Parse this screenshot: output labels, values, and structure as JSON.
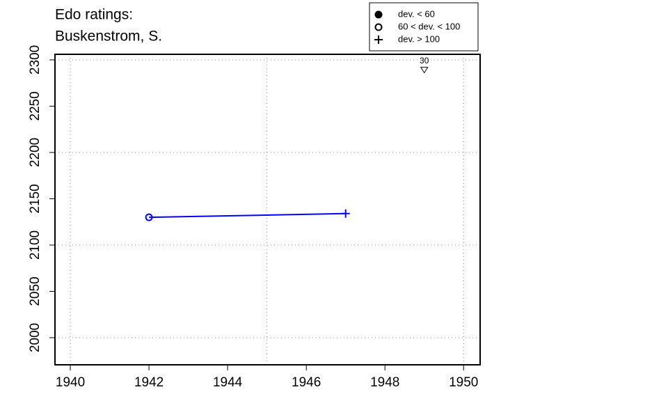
{
  "chart_data": {
    "type": "line",
    "title": [
      "Edo ratings:",
      "Buskenstrom, S."
    ],
    "x": [
      1942,
      1947
    ],
    "series": [
      {
        "color": "#0000ff",
        "values": [
          2130,
          2134
        ],
        "markers": [
          "open-circle",
          "plus"
        ]
      }
    ],
    "xlim": [
      1939.61,
      1950.42
    ],
    "ylim": [
      1970.7,
      2306
    ],
    "xticks": [
      1940,
      1942,
      1944,
      1946,
      1948,
      1950
    ],
    "yticks": [
      2000,
      2050,
      2100,
      2150,
      2200,
      2250,
      2300
    ],
    "xgrid": [
      1940,
      1945,
      1950
    ],
    "ygrid": [
      2000,
      2100,
      2200,
      2300
    ],
    "annotations": [
      {
        "x": 1949,
        "y": 2289,
        "label": "30",
        "marker": "down-triangle"
      }
    ],
    "legend": {
      "position": "top-right",
      "entries": [
        {
          "label": "dev. < 60",
          "marker": "filled-circle"
        },
        {
          "label": "60 < dev. < 100",
          "marker": "open-circle"
        },
        {
          "label": "dev. > 100",
          "marker": "plus"
        }
      ]
    }
  }
}
